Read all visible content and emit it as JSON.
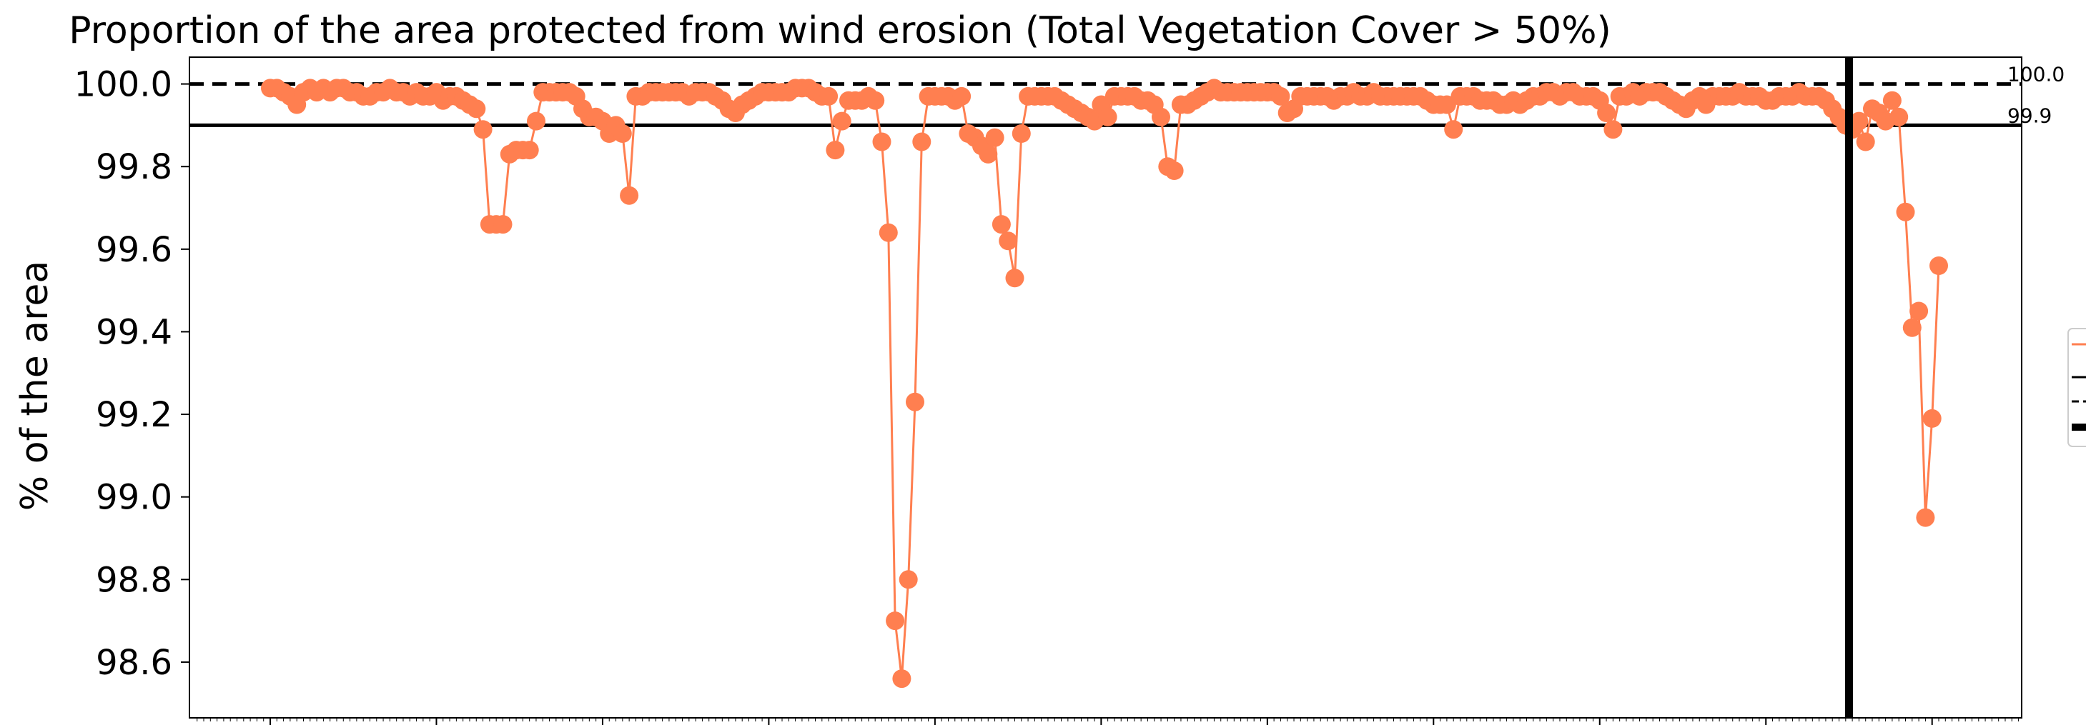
{
  "chart_data": {
    "type": "line",
    "title": "Proportion of the area protected from wind erosion (Total Vegetation Cover > 50%)",
    "ylabel": "% of the area",
    "xlabel": "",
    "ylim": [
      98.465,
      100.065
    ],
    "yticks": [
      "98.6",
      "98.8",
      "99.0",
      "99.2",
      "99.4",
      "99.6",
      "99.8",
      "100.0"
    ],
    "grid": false,
    "legend_placement": "right (clipped)",
    "colors": {
      "series": "#FF7F50",
      "reference": "#000000"
    },
    "reference_lines": [
      {
        "value": 100.0,
        "style": "dashed",
        "label": "100.0"
      },
      {
        "value": 99.9,
        "style": "solid",
        "label": "99.9"
      }
    ],
    "x_divider_index": 237,
    "series": [
      {
        "values": [
          99.99,
          99.99,
          99.98,
          99.97,
          99.95,
          99.98,
          99.99,
          99.98,
          99.99,
          99.98,
          99.99,
          99.99,
          99.98,
          99.98,
          99.97,
          99.97,
          99.98,
          99.98,
          99.99,
          99.98,
          99.98,
          99.97,
          99.98,
          99.97,
          99.97,
          99.98,
          99.96,
          99.97,
          99.97,
          99.96,
          99.95,
          99.94,
          99.89,
          99.66,
          99.66,
          99.66,
          99.83,
          99.84,
          99.84,
          99.84,
          99.91,
          99.98,
          99.98,
          99.98,
          99.98,
          99.98,
          99.97,
          99.94,
          99.92,
          99.92,
          99.91,
          99.88,
          99.9,
          99.88,
          99.73,
          99.97,
          99.97,
          99.98,
          99.98,
          99.98,
          99.98,
          99.98,
          99.98,
          99.97,
          99.98,
          99.98,
          99.98,
          99.97,
          99.96,
          99.94,
          99.93,
          99.95,
          99.96,
          99.97,
          99.98,
          99.98,
          99.98,
          99.98,
          99.98,
          99.99,
          99.99,
          99.99,
          99.98,
          99.97,
          99.97,
          99.84,
          99.91,
          99.96,
          99.96,
          99.96,
          99.97,
          99.96,
          99.86,
          99.64,
          98.7,
          98.56,
          98.8,
          99.23,
          99.86,
          99.97,
          99.97,
          99.97,
          99.97,
          99.96,
          99.97,
          99.88,
          99.87,
          99.85,
          99.83,
          99.87,
          99.66,
          99.62,
          99.53,
          99.88,
          99.97,
          99.97,
          99.97,
          99.97,
          99.97,
          99.96,
          99.95,
          99.94,
          99.93,
          99.92,
          99.91,
          99.95,
          99.92,
          99.97,
          99.97,
          99.97,
          99.97,
          99.96,
          99.96,
          99.95,
          99.92,
          99.8,
          99.79,
          99.95,
          99.95,
          99.96,
          99.97,
          99.98,
          99.99,
          99.98,
          99.98,
          99.98,
          99.98,
          99.98,
          99.98,
          99.98,
          99.98,
          99.98,
          99.97,
          99.93,
          99.94,
          99.97,
          99.97,
          99.97,
          99.97,
          99.97,
          99.96,
          99.97,
          99.97,
          99.98,
          99.97,
          99.97,
          99.98,
          99.97,
          99.97,
          99.97,
          99.97,
          99.97,
          99.97,
          99.97,
          99.96,
          99.95,
          99.95,
          99.95,
          99.89,
          99.97,
          99.97,
          99.97,
          99.96,
          99.96,
          99.96,
          99.95,
          99.95,
          99.96,
          99.95,
          99.96,
          99.97,
          99.97,
          99.98,
          99.98,
          99.97,
          99.98,
          99.98,
          99.97,
          99.97,
          99.97,
          99.96,
          99.93,
          99.89,
          99.97,
          99.97,
          99.98,
          99.97,
          99.98,
          99.98,
          99.98,
          99.97,
          99.96,
          99.95,
          99.94,
          99.96,
          99.97,
          99.95,
          99.97,
          99.97,
          99.97,
          99.97,
          99.98,
          99.97,
          99.97,
          99.97,
          99.96,
          99.96,
          99.97,
          99.97,
          99.97,
          99.98,
          99.97,
          99.97,
          99.97,
          99.96,
          99.94,
          99.92,
          99.9,
          99.89,
          99.91,
          99.86,
          99.94,
          99.93,
          99.91,
          99.96,
          99.92,
          99.69,
          99.41,
          99.45,
          98.95,
          99.19,
          99.56
        ]
      }
    ]
  }
}
